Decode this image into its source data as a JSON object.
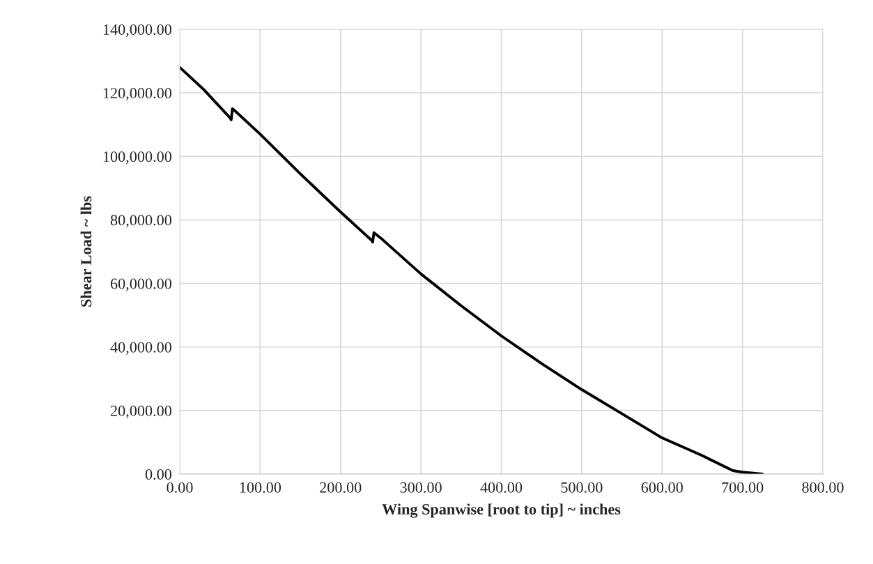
{
  "chart_data": {
    "type": "line",
    "xlabel": "Wing Spanwise [root to tip] ~ inches",
    "ylabel": "Shear Load ~ lbs",
    "x": [
      0,
      30,
      63,
      64,
      65.5,
      68,
      100,
      150,
      200,
      239,
      240,
      241.5,
      250,
      300,
      350,
      400,
      450,
      500,
      550,
      600,
      650,
      688,
      700,
      725
    ],
    "series": [
      {
        "color": "#000000",
        "values": [
          128000,
          121000,
          112000,
          111500,
          115000,
          114500,
          107000,
          94500,
          82500,
          73500,
          73000,
          76000,
          74300,
          63000,
          53000,
          43500,
          34800,
          26600,
          19000,
          11400,
          5800,
          1100,
          600,
          0
        ]
      }
    ],
    "xlim": [
      0,
      800
    ],
    "ylim": [
      0,
      140000
    ],
    "xticks": [
      {
        "value": 0,
        "label": "0.00"
      },
      {
        "value": 100,
        "label": "100.00"
      },
      {
        "value": 200,
        "label": "200.00"
      },
      {
        "value": 300,
        "label": "300.00"
      },
      {
        "value": 400,
        "label": "400.00"
      },
      {
        "value": 500,
        "label": "500.00"
      },
      {
        "value": 600,
        "label": "600.00"
      },
      {
        "value": 700,
        "label": "700.00"
      },
      {
        "value": 800,
        "label": "800.00"
      }
    ],
    "yticks": [
      {
        "value": 0,
        "label": "0.00"
      },
      {
        "value": 20000,
        "label": "20,000.00"
      },
      {
        "value": 40000,
        "label": "40,000.00"
      },
      {
        "value": 60000,
        "label": "60,000.00"
      },
      {
        "value": 80000,
        "label": "80,000.00"
      },
      {
        "value": 100000,
        "label": "100,000.00"
      },
      {
        "value": 120000,
        "label": "120,000.00"
      },
      {
        "value": 140000,
        "label": "140,000.00"
      }
    ],
    "grid": true,
    "legend": false,
    "marker": "none",
    "line_style": "solid"
  }
}
